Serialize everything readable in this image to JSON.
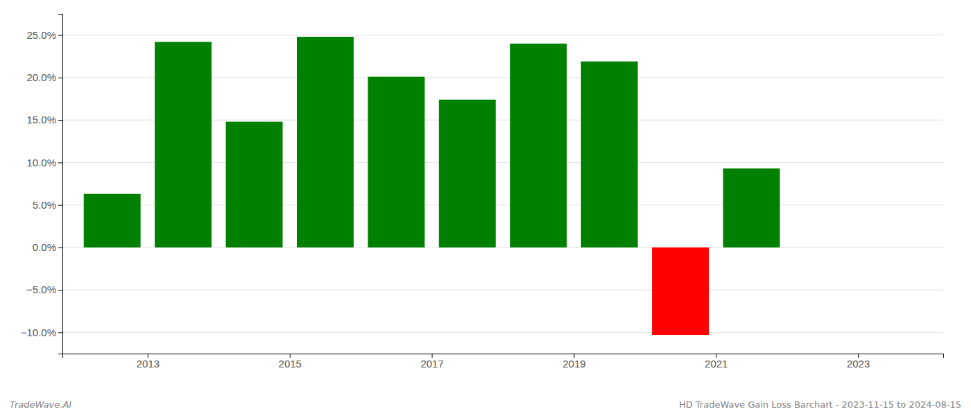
{
  "chart_data": {
    "type": "bar",
    "x": [
      2012.5,
      2013.5,
      2014.5,
      2015.5,
      2016.5,
      2017.5,
      2018.5,
      2019.5,
      2020.5,
      2021.5
    ],
    "values": [
      0.063,
      0.242,
      0.148,
      0.248,
      0.201,
      0.174,
      0.24,
      0.219,
      -0.103,
      0.093
    ],
    "colors": [
      "#008000",
      "#008000",
      "#008000",
      "#008000",
      "#008000",
      "#008000",
      "#008000",
      "#008000",
      "#ff0000",
      "#008000"
    ],
    "xlim": [
      2011.8,
      2024.2
    ],
    "xticks": [
      2013,
      2015,
      2017,
      2019,
      2021,
      2023
    ],
    "ylim": [
      -0.125,
      0.275
    ],
    "yticks": [
      {
        "value": -0.1,
        "label": "−10.0%"
      },
      {
        "value": -0.05,
        "label": "−5.0%"
      },
      {
        "value": 0.0,
        "label": "0.0%"
      },
      {
        "value": 0.05,
        "label": "5.0%"
      },
      {
        "value": 0.1,
        "label": "10.0%"
      },
      {
        "value": 0.15,
        "label": "15.0%"
      },
      {
        "value": 0.2,
        "label": "20.0%"
      },
      {
        "value": 0.25,
        "label": "25.0%"
      }
    ],
    "grid": true,
    "annotations": [
      "TradeWave.AI",
      "HD TradeWave Gain Loss Barchart - 2023-11-15 to 2024-08-15"
    ]
  }
}
